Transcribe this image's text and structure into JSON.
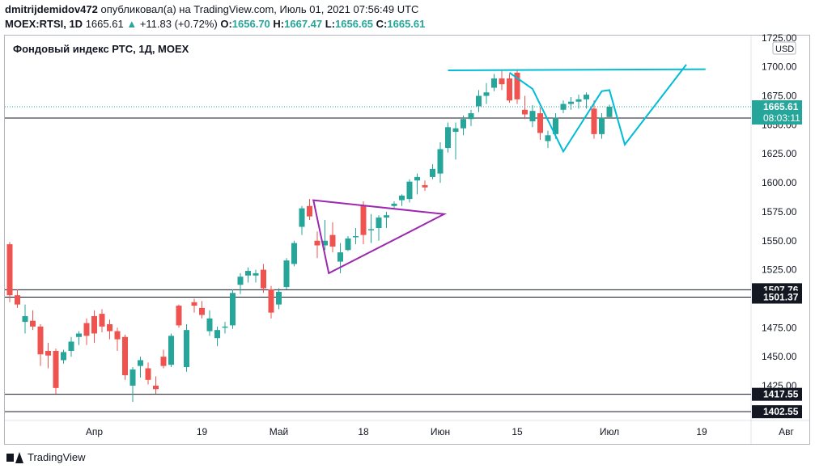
{
  "header": {
    "author": "dmitrijdemidov472",
    "published_text": "опубликовал(а) на TradingView.com, Июль 01, 2021 07:56:49 UTC",
    "symbol": "MOEX:RTSI, 1D",
    "last_price": "1665.61",
    "change": "+11.83 (+0.72%)",
    "open_label": "O:",
    "open": "1656.70",
    "high_label": "H:",
    "high": "1667.47",
    "low_label": "L:",
    "low": "1656.65",
    "close_label": "C:",
    "close": "1665.61"
  },
  "footer": {
    "brand": "TradingView"
  },
  "colors": {
    "up": "#26a69a",
    "down": "#ef5350",
    "cyan": "#00bcd4",
    "purple": "#9c27b0",
    "dark": "#131722"
  },
  "chart_data": {
    "type": "candlestick",
    "title": "Фондовый индекс РТС, 1Д, MOEX",
    "currency": "USD",
    "ylim": [
      1395,
      1727
    ],
    "y_ticks": [
      1425,
      1450,
      1475,
      1500,
      1525,
      1550,
      1575,
      1600,
      1625,
      1650,
      1675,
      1700,
      1725
    ],
    "x_range": [
      0,
      110
    ],
    "x_ticks": [
      {
        "i": 11,
        "label": "Апр"
      },
      {
        "i": 25,
        "label": "19"
      },
      {
        "i": 35,
        "label": "Май"
      },
      {
        "i": 46,
        "label": "18"
      },
      {
        "i": 56,
        "label": "Июн"
      },
      {
        "i": 66,
        "label": "15"
      },
      {
        "i": 78,
        "label": "Июл"
      },
      {
        "i": 90,
        "label": "19"
      },
      {
        "i": 101,
        "label": "Авг"
      }
    ],
    "candles": [
      [
        0,
        1547,
        1549,
        1497,
        1503
      ],
      [
        1,
        1503,
        1508,
        1492,
        1495
      ],
      [
        2,
        1480,
        1495,
        1470,
        1485
      ],
      [
        3,
        1481,
        1490,
        1473,
        1476
      ],
      [
        4,
        1476,
        1478,
        1442,
        1452
      ],
      [
        5,
        1455,
        1462,
        1440,
        1451
      ],
      [
        6,
        1455,
        1457,
        1418,
        1423
      ],
      [
        7,
        1447,
        1456,
        1444,
        1454
      ],
      [
        8,
        1455,
        1467,
        1450,
        1463
      ],
      [
        9,
        1467,
        1472,
        1460,
        1470
      ],
      [
        10,
        1479,
        1483,
        1460,
        1468
      ],
      [
        11,
        1485,
        1490,
        1462,
        1470
      ],
      [
        12,
        1487,
        1491,
        1471,
        1476
      ],
      [
        13,
        1478,
        1482,
        1465,
        1472
      ],
      [
        14,
        1472,
        1475,
        1455,
        1465
      ],
      [
        15,
        1467,
        1469,
        1430,
        1434
      ],
      [
        16,
        1425,
        1441,
        1411,
        1439
      ],
      [
        17,
        1442,
        1450,
        1432,
        1447
      ],
      [
        18,
        1440,
        1445,
        1426,
        1430
      ],
      [
        19,
        1425,
        1433,
        1418,
        1422
      ],
      [
        20,
        1450,
        1456,
        1440,
        1442
      ],
      [
        21,
        1443,
        1470,
        1441,
        1468
      ],
      [
        22,
        1494,
        1495,
        1475,
        1477
      ],
      [
        23,
        1441,
        1478,
        1437,
        1473
      ],
      [
        24,
        1497,
        1500,
        1488,
        1494
      ],
      [
        25,
        1492,
        1498,
        1483,
        1486
      ],
      [
        26,
        1472,
        1490,
        1468,
        1483
      ],
      [
        27,
        1466,
        1476,
        1459,
        1473
      ],
      [
        28,
        1475,
        1480,
        1470,
        1476
      ],
      [
        29,
        1477,
        1508,
        1474,
        1505
      ],
      [
        30,
        1512,
        1522,
        1504,
        1519
      ],
      [
        31,
        1520,
        1527,
        1514,
        1524
      ],
      [
        32,
        1520,
        1525,
        1514,
        1522
      ],
      [
        33,
        1525,
        1530,
        1505,
        1509
      ],
      [
        34,
        1508,
        1511,
        1483,
        1488
      ],
      [
        35,
        1495,
        1509,
        1491,
        1506
      ],
      [
        36,
        1510,
        1535,
        1508,
        1533
      ],
      [
        37,
        1530,
        1550,
        1528,
        1548
      ],
      [
        38,
        1562,
        1580,
        1555,
        1578
      ],
      [
        39,
        1580,
        1586,
        1568,
        1571
      ],
      [
        40,
        1550,
        1558,
        1535,
        1546
      ],
      [
        41,
        1546,
        1568,
        1542,
        1550
      ],
      [
        42,
        1555,
        1566,
        1540,
        1545
      ],
      [
        43,
        1532,
        1548,
        1522,
        1540
      ],
      [
        44,
        1542,
        1554,
        1541,
        1552
      ],
      [
        45,
        1553,
        1561,
        1547,
        1554
      ],
      [
        46,
        1580,
        1584,
        1547,
        1555
      ],
      [
        47,
        1559,
        1573,
        1548,
        1560
      ],
      [
        48,
        1561,
        1572,
        1550,
        1570
      ],
      [
        49,
        1570,
        1575,
        1561,
        1572
      ],
      [
        50,
        1580,
        1584,
        1577,
        1582
      ],
      [
        51,
        1585,
        1590,
        1580,
        1589
      ],
      [
        52,
        1586,
        1603,
        1583,
        1601
      ],
      [
        53,
        1602,
        1608,
        1590,
        1605
      ],
      [
        54,
        1598,
        1602,
        1593,
        1596
      ],
      [
        55,
        1605,
        1616,
        1603,
        1612
      ],
      [
        56,
        1608,
        1635,
        1600,
        1629
      ],
      [
        57,
        1630,
        1652,
        1626,
        1648
      ],
      [
        58,
        1644,
        1652,
        1620,
        1647
      ],
      [
        59,
        1647,
        1658,
        1641,
        1655
      ],
      [
        60,
        1655,
        1663,
        1649,
        1660
      ],
      [
        61,
        1666,
        1680,
        1661,
        1675
      ],
      [
        62,
        1675,
        1686,
        1668,
        1678
      ],
      [
        63,
        1682,
        1694,
        1679,
        1690
      ],
      [
        64,
        1690,
        1697,
        1680,
        1685
      ],
      [
        65,
        1690,
        1694,
        1669,
        1671
      ],
      [
        66,
        1695,
        1698,
        1668,
        1672
      ],
      [
        67,
        1663,
        1675,
        1655,
        1659
      ],
      [
        68,
        1653,
        1667,
        1648,
        1662
      ],
      [
        69,
        1660,
        1665,
        1637,
        1643
      ],
      [
        70,
        1636,
        1645,
        1630,
        1641
      ],
      [
        71,
        1642,
        1660,
        1638,
        1656
      ],
      [
        72,
        1663,
        1671,
        1660,
        1668
      ],
      [
        73,
        1668,
        1674,
        1663,
        1670
      ],
      [
        74,
        1670,
        1676,
        1664,
        1672
      ],
      [
        75,
        1672,
        1678,
        1664,
        1676
      ],
      [
        76,
        1664,
        1671,
        1638,
        1642
      ],
      [
        77,
        1642,
        1660,
        1638,
        1656
      ],
      [
        78,
        1656.7,
        1667.47,
        1656.65,
        1665.61
      ]
    ],
    "horizontal_lines": [
      1655.87,
      1507.76,
      1501.37,
      1417.55,
      1402.55
    ],
    "price_labels": [
      "1655.87",
      "1507.76",
      "1501.37",
      "1417.55",
      "1402.55"
    ],
    "last_price_label": "1665.61",
    "countdown": "08:03:11",
    "triangle": [
      [
        39.5,
        1585
      ],
      [
        56.5,
        1573
      ],
      [
        41.5,
        1522
      ]
    ],
    "cyan_resistance": [
      [
        57,
        1697
      ],
      [
        90.5,
        1698
      ]
    ],
    "cyan_pattern": [
      [
        65,
        1695
      ],
      [
        68,
        1681
      ],
      [
        72,
        1627
      ],
      [
        77,
        1679
      ],
      [
        78,
        1680
      ],
      [
        80,
        1633
      ],
      [
        88,
        1702
      ]
    ]
  }
}
